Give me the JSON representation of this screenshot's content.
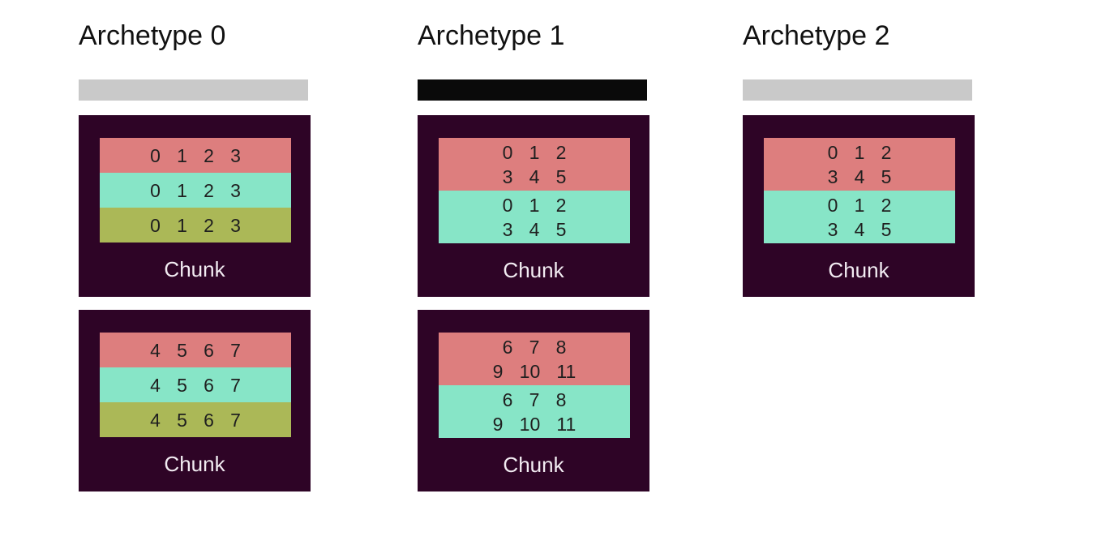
{
  "colors": {
    "page_bg": "#ffffff",
    "chunk_bg": "#2e0426",
    "band_salmon": "#dd7e7e",
    "band_mint": "#87e5c7",
    "band_olive": "#abb857",
    "bar_gray": "#c9c9c9",
    "bar_black": "#0a0a0a",
    "title_text": "#111111",
    "number_text": "#1f1f1f",
    "chunk_label_text": "#f2ecf2"
  },
  "columns": [
    {
      "title": "Archetype 0",
      "bar": {
        "color": "#c9c9c9"
      },
      "chunks": [
        {
          "label": "Chunk",
          "bands": [
            {
              "color": "#dd7e7e",
              "text": "0 1 2 3"
            },
            {
              "color": "#87e5c7",
              "text": "0 1 2 3"
            },
            {
              "color": "#abb857",
              "text": "0 1 2 3"
            }
          ]
        },
        {
          "label": "Chunk",
          "bands": [
            {
              "color": "#dd7e7e",
              "text": "4 5 6 7"
            },
            {
              "color": "#87e5c7",
              "text": "4 5 6 7"
            },
            {
              "color": "#abb857",
              "text": "4 5 6 7"
            }
          ]
        }
      ]
    },
    {
      "title": "Archetype 1",
      "bar": {
        "color": "#0a0a0a"
      },
      "chunks": [
        {
          "label": "Chunk",
          "bands": [
            {
              "color": "#dd7e7e",
              "text": "0 1 2\n3 4 5"
            },
            {
              "color": "#87e5c7",
              "text": "0 1 2\n3 4 5"
            }
          ]
        },
        {
          "label": "Chunk",
          "bands": [
            {
              "color": "#dd7e7e",
              "text": "6 7 8\n9 10 11"
            },
            {
              "color": "#87e5c7",
              "text": "6 7 8\n9 10 11"
            }
          ]
        }
      ]
    },
    {
      "title": "Archetype 2",
      "bar": {
        "color": "#c9c9c9"
      },
      "chunks": [
        {
          "label": "Chunk",
          "bands": [
            {
              "color": "#dd7e7e",
              "text": "0 1 2\n3 4 5"
            },
            {
              "color": "#87e5c7",
              "text": "0 1 2\n3 4 5"
            }
          ]
        }
      ]
    }
  ]
}
